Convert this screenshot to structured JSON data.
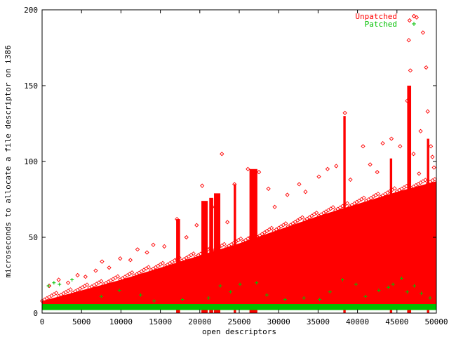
{
  "chart_data": {
    "type": "scatter",
    "title": "",
    "xlabel": "open descriptors",
    "ylabel": "microseconds to allocate a file descriptor on i386",
    "xlim": [
      0,
      50000
    ],
    "ylim": [
      0,
      200
    ],
    "x_ticks": [
      "0",
      "5000",
      "10000",
      "15000",
      "20000",
      "25000",
      "30000",
      "35000",
      "40000",
      "45000",
      "50000"
    ],
    "y_ticks": [
      "0",
      "50",
      "100",
      "150",
      "200"
    ],
    "grid": false,
    "legend_position": "top-right",
    "series": [
      {
        "name": "Unpatched",
        "marker": "diamond",
        "color": "#ff0000",
        "trend_baseline": [
          [
            0,
            3
          ],
          [
            50000,
            4
          ]
        ],
        "trend_upper": [
          [
            0,
            8
          ],
          [
            5000,
            15
          ],
          [
            10000,
            22
          ],
          [
            15000,
            30
          ],
          [
            20000,
            38
          ],
          [
            25000,
            46
          ],
          [
            30000,
            55
          ],
          [
            35000,
            64
          ],
          [
            40000,
            72
          ],
          [
            45000,
            80
          ],
          [
            50000,
            87
          ]
        ],
        "points": [
          [
            900,
            18
          ],
          [
            2100,
            22
          ],
          [
            3300,
            20
          ],
          [
            4500,
            25
          ],
          [
            5500,
            24
          ],
          [
            6800,
            28
          ],
          [
            7600,
            34
          ],
          [
            8500,
            30
          ],
          [
            9900,
            36
          ],
          [
            11200,
            35
          ],
          [
            12100,
            42
          ],
          [
            13300,
            40
          ],
          [
            14100,
            45
          ],
          [
            15500,
            44
          ],
          [
            17100,
            62
          ],
          [
            18300,
            50
          ],
          [
            19600,
            58
          ],
          [
            20300,
            84
          ],
          [
            21600,
            70
          ],
          [
            22800,
            105
          ],
          [
            23500,
            60
          ],
          [
            24400,
            85
          ],
          [
            26100,
            95
          ],
          [
            27500,
            93
          ],
          [
            28700,
            82
          ],
          [
            29500,
            70
          ],
          [
            31100,
            78
          ],
          [
            32600,
            85
          ],
          [
            33400,
            80
          ],
          [
            35100,
            90
          ],
          [
            36200,
            95
          ],
          [
            37300,
            97
          ],
          [
            38400,
            132
          ],
          [
            39100,
            88
          ],
          [
            40700,
            110
          ],
          [
            41600,
            98
          ],
          [
            42500,
            93
          ],
          [
            43200,
            112
          ],
          [
            44300,
            115
          ],
          [
            45400,
            110
          ],
          [
            46600,
            193
          ],
          [
            46500,
            180
          ],
          [
            46700,
            160
          ],
          [
            47100,
            105
          ],
          [
            47500,
            195
          ],
          [
            48300,
            185
          ],
          [
            48700,
            162
          ],
          [
            48900,
            133
          ],
          [
            49300,
            110
          ],
          [
            49500,
            103
          ],
          [
            46300,
            140
          ],
          [
            48000,
            120
          ],
          [
            49700,
            96
          ],
          [
            47800,
            92
          ]
        ],
        "spikes": [
          {
            "x_start": 17000,
            "x_end": 17500,
            "y_top": 62
          },
          {
            "x_start": 20200,
            "x_end": 21000,
            "y_top": 74
          },
          {
            "x_start": 21200,
            "x_end": 21700,
            "y_top": 76
          },
          {
            "x_start": 21800,
            "x_end": 22600,
            "y_top": 79
          },
          {
            "x_start": 24300,
            "x_end": 24600,
            "y_top": 85
          },
          {
            "x_start": 26300,
            "x_end": 27300,
            "y_top": 95
          },
          {
            "x_start": 38200,
            "x_end": 38500,
            "y_top": 130
          },
          {
            "x_start": 44100,
            "x_end": 44400,
            "y_top": 102
          },
          {
            "x_start": 46300,
            "x_end": 46800,
            "y_top": 150
          },
          {
            "x_start": 48800,
            "x_end": 49100,
            "y_top": 115
          }
        ]
      },
      {
        "name": "Patched",
        "marker": "plus",
        "color": "#00c000",
        "band": [
          2,
          6
        ],
        "points": [
          [
            800,
            18
          ],
          [
            1500,
            20
          ],
          [
            2200,
            19
          ],
          [
            3800,
            22
          ],
          [
            7500,
            11
          ],
          [
            9800,
            15
          ],
          [
            14200,
            8
          ],
          [
            21100,
            10
          ],
          [
            22600,
            18
          ],
          [
            23900,
            14
          ],
          [
            25100,
            19
          ],
          [
            27200,
            20
          ],
          [
            28500,
            12
          ],
          [
            30800,
            9
          ],
          [
            33200,
            10
          ],
          [
            36500,
            14
          ],
          [
            38100,
            22
          ],
          [
            39800,
            19
          ],
          [
            41000,
            11
          ],
          [
            42700,
            15
          ],
          [
            43900,
            17
          ],
          [
            44500,
            19
          ],
          [
            45600,
            23
          ],
          [
            46300,
            14
          ],
          [
            47200,
            18
          ],
          [
            48100,
            13
          ],
          [
            49200,
            10
          ],
          [
            12500,
            12
          ],
          [
            17800,
            9
          ],
          [
            35200,
            9
          ]
        ]
      }
    ]
  }
}
